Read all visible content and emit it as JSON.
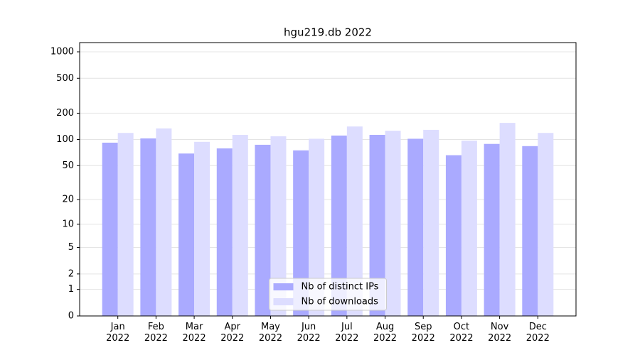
{
  "chart_data": {
    "type": "bar",
    "title": "hgu219.db 2022",
    "categories": [
      "Jan\n2022",
      "Feb\n2022",
      "Mar\n2022",
      "Apr\n2022",
      "May\n2022",
      "Jun\n2022",
      "Jul\n2022",
      "Aug\n2022",
      "Sep\n2022",
      "Oct\n2022",
      "Nov\n2022",
      "Dec\n2022"
    ],
    "series": [
      {
        "name": "Nb of distinct IPs",
        "color": "#aaaaff",
        "values": [
          92,
          103,
          69,
          79,
          87,
          75,
          111,
          113,
          102,
          66,
          89,
          84
        ]
      },
      {
        "name": "Nb of downloads",
        "color": "#ddddff",
        "values": [
          119,
          134,
          94,
          113,
          109,
          102,
          141,
          126,
          129,
          97,
          155,
          119
        ]
      }
    ],
    "yscale": "log1p",
    "ylim": [
      0,
      1273
    ],
    "yticks": [
      0,
      1,
      2,
      5,
      10,
      20,
      50,
      100,
      200,
      500,
      1000
    ],
    "grid": true,
    "legend": "lower center"
  }
}
